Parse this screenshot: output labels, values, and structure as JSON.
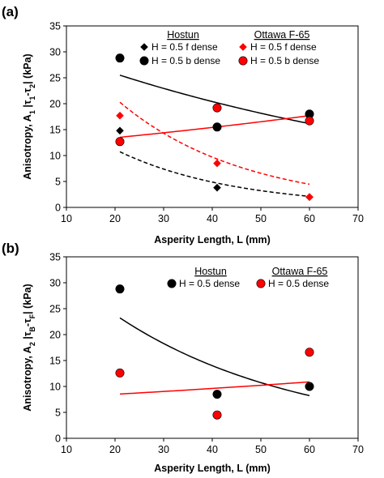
{
  "colors": {
    "black": "#000000",
    "red": "#ff0000"
  },
  "chart_data": [
    {
      "type": "scatter",
      "panel_label": "(a)",
      "xlabel": "Asperity Length, L (mm)",
      "ylabel": "Anisotropy, A",
      "ylabel_sub": "1",
      "ylabel_mid": " |τ",
      "ylabel_sub2": "1",
      "ylabel_dash": "-τ",
      "ylabel_sub3": "2",
      "ylabel_end": "| (kPa)",
      "xlim": [
        10,
        70
      ],
      "ylim": [
        0,
        35
      ],
      "xticks": [
        "10",
        "20",
        "30",
        "40",
        "50",
        "60",
        "70"
      ],
      "yticks": [
        "0",
        "5",
        "10",
        "15",
        "20",
        "25",
        "30",
        "35"
      ],
      "legend_groups": [
        "Hostun",
        "Ottawa F-65"
      ],
      "series": [
        {
          "name": "H = 0.5 f dense",
          "group": "Hostun",
          "marker": "diamond",
          "color": "#000000",
          "x": [
            21,
            41,
            60
          ],
          "y": [
            14.8,
            3.8,
            2.0
          ],
          "trend": {
            "style": "dashed",
            "kind": "exp",
            "a": 25.6,
            "b": -0.0414
          }
        },
        {
          "name": "H = 0.5 b dense",
          "group": "Hostun",
          "marker": "circle",
          "color": "#000000",
          "x": [
            21,
            41,
            60
          ],
          "y": [
            28.8,
            15.5,
            18.0
          ],
          "trend": {
            "style": "solid",
            "kind": "exp",
            "a": 32.6,
            "b": -0.0117
          }
        },
        {
          "name": "H = 0.5 f dense",
          "group": "Ottawa F-65",
          "marker": "diamond",
          "color": "#ff0000",
          "x": [
            21,
            41,
            60
          ],
          "y": [
            17.7,
            8.5,
            2.0
          ],
          "trend": {
            "style": "dashed",
            "kind": "exp",
            "a": 45.8,
            "b": -0.0388
          }
        },
        {
          "name": "H = 0.5 b dense",
          "group": "Ottawa F-65",
          "marker": "circle",
          "color": "#ff0000",
          "x": [
            21,
            41,
            60
          ],
          "y": [
            12.7,
            19.2,
            16.7
          ],
          "trend": {
            "style": "solid",
            "kind": "exp",
            "a": 11.7,
            "b": 0.0069
          }
        }
      ]
    },
    {
      "type": "scatter",
      "panel_label": "(b)",
      "xlabel": "Asperity Length, L (mm)",
      "ylabel": "Anisotropy, A",
      "ylabel_sub": "2",
      "ylabel_mid": " |τ",
      "ylabel_sub2": "B",
      "ylabel_dash": "-τ",
      "ylabel_sub3": "F",
      "ylabel_end": "| (kPa)",
      "xlim": [
        10,
        70
      ],
      "ylim": [
        0,
        35
      ],
      "xticks": [
        "10",
        "20",
        "30",
        "40",
        "50",
        "60",
        "70"
      ],
      "yticks": [
        "0",
        "5",
        "10",
        "15",
        "20",
        "25",
        "30",
        "35"
      ],
      "legend_groups": [
        "Hostun",
        "Ottawa F-65"
      ],
      "series": [
        {
          "name": "H = 0.5 dense",
          "group": "Hostun",
          "marker": "circle",
          "color": "#000000",
          "x": [
            21,
            41,
            60
          ],
          "y": [
            28.8,
            8.5,
            10.0
          ],
          "trend": {
            "style": "solid",
            "kind": "exp",
            "a": 40.6,
            "b": -0.0266
          }
        },
        {
          "name": "H = 0.5 dense",
          "group": "Ottawa F-65",
          "marker": "circle",
          "color": "#ff0000",
          "x": [
            21,
            41,
            60
          ],
          "y": [
            12.6,
            4.5,
            16.6
          ],
          "trend": {
            "style": "solid",
            "kind": "exp",
            "a": 7.5,
            "b": 0.0062
          }
        }
      ]
    }
  ]
}
